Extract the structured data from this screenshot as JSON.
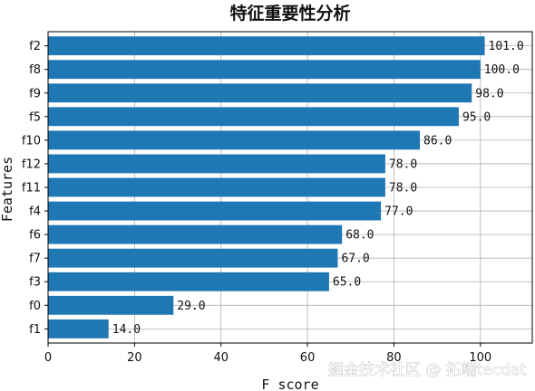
{
  "chart_data": {
    "type": "bar",
    "orientation": "horizontal",
    "title": "特征重要性分析",
    "xlabel": "F score",
    "ylabel": "Features",
    "xlim": [
      0,
      112
    ],
    "xticks": [
      0,
      20,
      40,
      60,
      80,
      100
    ],
    "grid": true,
    "bar_color": "#1f77b4",
    "categories": [
      "f2",
      "f8",
      "f9",
      "f5",
      "f10",
      "f12",
      "f11",
      "f4",
      "f6",
      "f7",
      "f3",
      "f0",
      "f1"
    ],
    "values": [
      101,
      100,
      98,
      95,
      86,
      78,
      78,
      77,
      68,
      67,
      65,
      29,
      14
    ],
    "data_labels": [
      "101.0",
      "100.0",
      "98.0",
      "95.0",
      "86.0",
      "78.0",
      "78.0",
      "77.0",
      "68.0",
      "67.0",
      "65.0",
      "29.0",
      "14.0"
    ]
  },
  "watermark": "掘金技术社区 @ 拓端tecdat"
}
